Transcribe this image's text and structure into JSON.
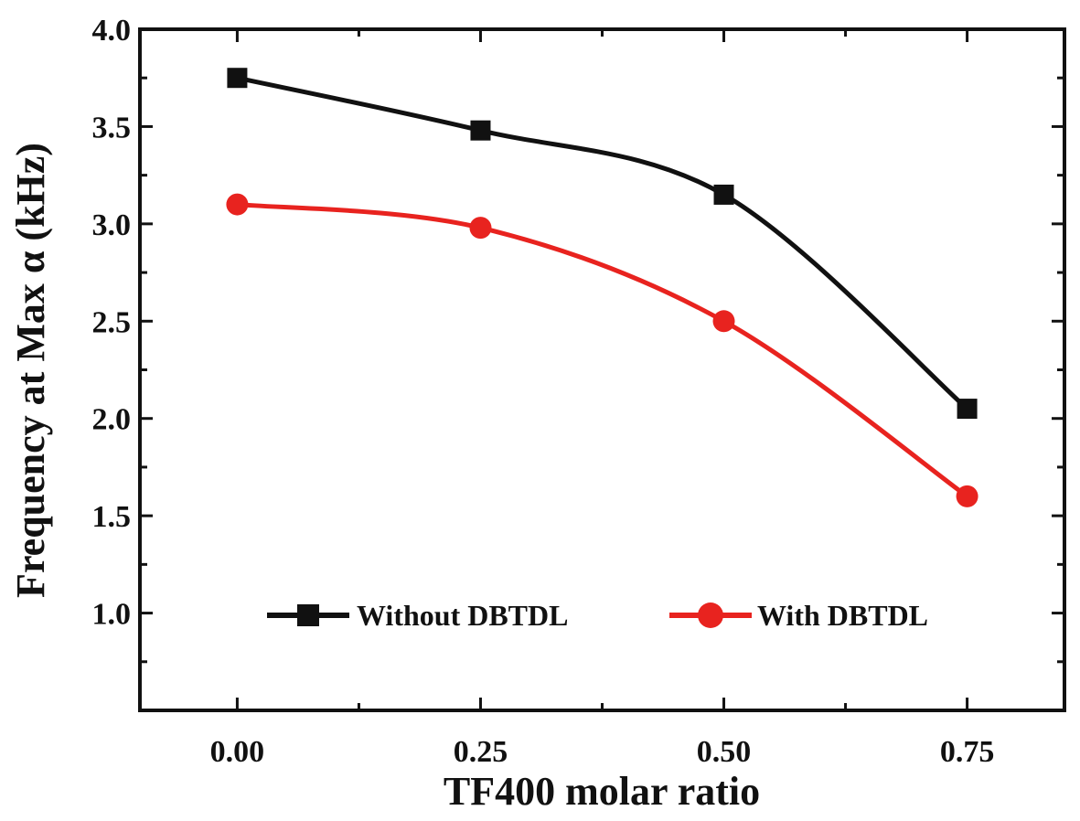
{
  "chart_data": {
    "type": "line",
    "title": "",
    "xlabel": "TF400 molar ratio",
    "ylabel": "Frequency at Max α (kHz)",
    "x": [
      0.0,
      0.25,
      0.5,
      0.75
    ],
    "xticks": [
      "0.00",
      "0.25",
      "0.50",
      "0.75"
    ],
    "yticks": [
      "1.0",
      "1.5",
      "2.0",
      "2.5",
      "3.0",
      "3.5",
      "4.0"
    ],
    "xlim": [
      -0.1,
      0.85
    ],
    "ylim": [
      0.5,
      4.0
    ],
    "grid": false,
    "legend_position": "bottom-center",
    "series": [
      {
        "name": "Without DBTDL",
        "values": [
          3.75,
          3.48,
          3.15,
          2.05
        ],
        "color": "#111111",
        "marker": "square"
      },
      {
        "name": "With DBTDL",
        "values": [
          3.1,
          2.98,
          2.5,
          1.6
        ],
        "color": "#e8231f",
        "marker": "circle"
      }
    ]
  }
}
